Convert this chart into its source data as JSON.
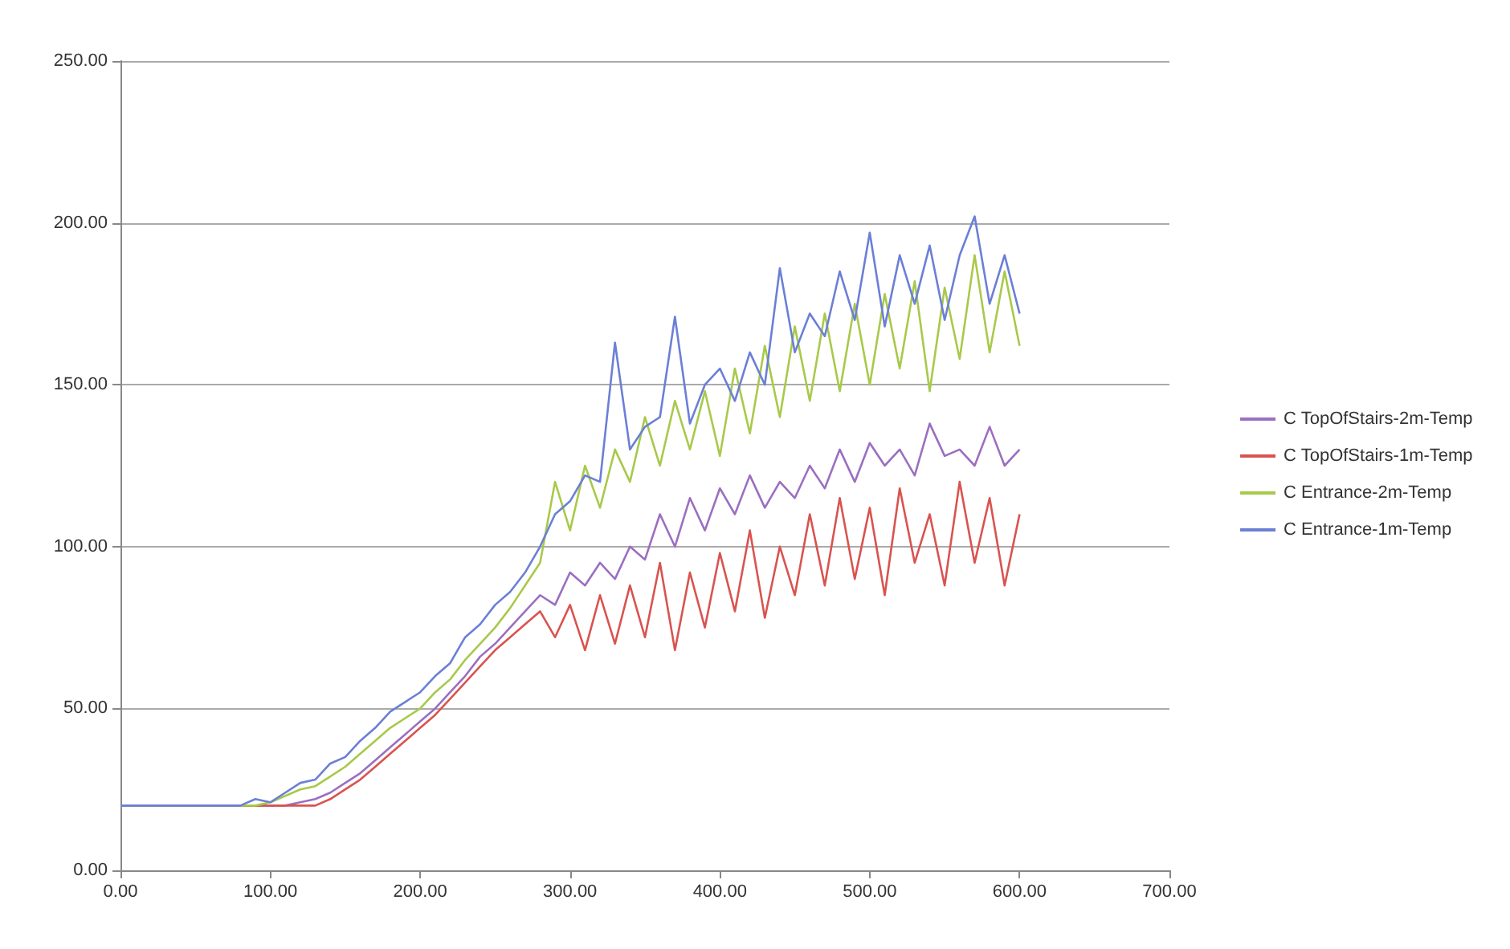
{
  "chart_data": {
    "type": "line",
    "x": [
      0,
      80,
      90,
      100,
      110,
      120,
      130,
      140,
      150,
      160,
      170,
      180,
      190,
      200,
      210,
      220,
      230,
      240,
      250,
      260,
      270,
      280,
      290,
      300,
      310,
      320,
      330,
      340,
      350,
      360,
      370,
      380,
      390,
      400,
      410,
      420,
      430,
      440,
      450,
      460,
      470,
      480,
      490,
      500,
      510,
      520,
      530,
      540,
      550,
      560,
      570,
      580,
      590,
      600
    ],
    "series": [
      {
        "name": "C TopOfStairs-2m-Temp",
        "color": "#9b6fc0",
        "values": [
          20,
          20,
          20,
          20,
          20,
          21,
          22,
          24,
          27,
          30,
          34,
          38,
          42,
          46,
          50,
          55,
          60,
          66,
          70,
          75,
          80,
          85,
          82,
          92,
          88,
          95,
          90,
          100,
          96,
          110,
          100,
          115,
          105,
          118,
          110,
          122,
          112,
          120,
          115,
          125,
          118,
          130,
          120,
          132,
          125,
          130,
          122,
          138,
          128,
          130,
          125,
          137,
          125,
          130
        ]
      },
      {
        "name": "C TopOfStairs-1m-Temp",
        "color": "#d9534f",
        "values": [
          20,
          20,
          20,
          20,
          20,
          20,
          20,
          22,
          25,
          28,
          32,
          36,
          40,
          44,
          48,
          53,
          58,
          63,
          68,
          72,
          76,
          80,
          72,
          82,
          68,
          85,
          70,
          88,
          72,
          95,
          68,
          92,
          75,
          98,
          80,
          105,
          78,
          100,
          85,
          110,
          88,
          115,
          90,
          112,
          85,
          118,
          95,
          110,
          88,
          120,
          95,
          115,
          88,
          110
        ]
      },
      {
        "name": "C Entrance-2m-Temp",
        "color": "#a8c94a",
        "values": [
          20,
          20,
          20,
          21,
          23,
          25,
          26,
          29,
          32,
          36,
          40,
          44,
          47,
          50,
          55,
          59,
          65,
          70,
          75,
          81,
          88,
          95,
          120,
          105,
          125,
          112,
          130,
          120,
          140,
          125,
          145,
          130,
          148,
          128,
          155,
          135,
          162,
          140,
          168,
          145,
          172,
          148,
          175,
          150,
          178,
          155,
          182,
          148,
          180,
          158,
          190,
          160,
          185,
          162
        ]
      },
      {
        "name": "C Entrance-1m-Temp",
        "color": "#6b7fd6",
        "values": [
          20,
          20,
          22,
          21,
          24,
          27,
          28,
          33,
          35,
          40,
          44,
          49,
          52,
          55,
          60,
          64,
          72,
          76,
          82,
          86,
          92,
          100,
          110,
          114,
          122,
          120,
          163,
          130,
          137,
          140,
          171,
          138,
          150,
          155,
          145,
          160,
          150,
          186,
          160,
          172,
          165,
          185,
          170,
          197,
          168,
          190,
          175,
          193,
          170,
          190,
          202,
          175,
          190,
          172
        ]
      }
    ],
    "xlim": [
      0,
      700
    ],
    "xticks": [
      {
        "value": 0,
        "label": "0.00"
      },
      {
        "value": 100,
        "label": "100.00"
      },
      {
        "value": 200,
        "label": "200.00"
      },
      {
        "value": 300,
        "label": "300.00"
      },
      {
        "value": 400,
        "label": "400.00"
      },
      {
        "value": 500,
        "label": "500.00"
      },
      {
        "value": 600,
        "label": "600.00"
      },
      {
        "value": 700,
        "label": "700.00"
      }
    ],
    "ylim": [
      0,
      250
    ],
    "yticks": [
      {
        "value": 0,
        "label": "0.00"
      },
      {
        "value": 50,
        "label": "50.00"
      },
      {
        "value": 100,
        "label": "100.00"
      },
      {
        "value": 150,
        "label": "150.00"
      },
      {
        "value": 200,
        "label": "200.00"
      },
      {
        "value": 250,
        "label": "250.00"
      }
    ],
    "grid": "y",
    "legend": "right",
    "marker": "none",
    "line_style": "solid"
  }
}
